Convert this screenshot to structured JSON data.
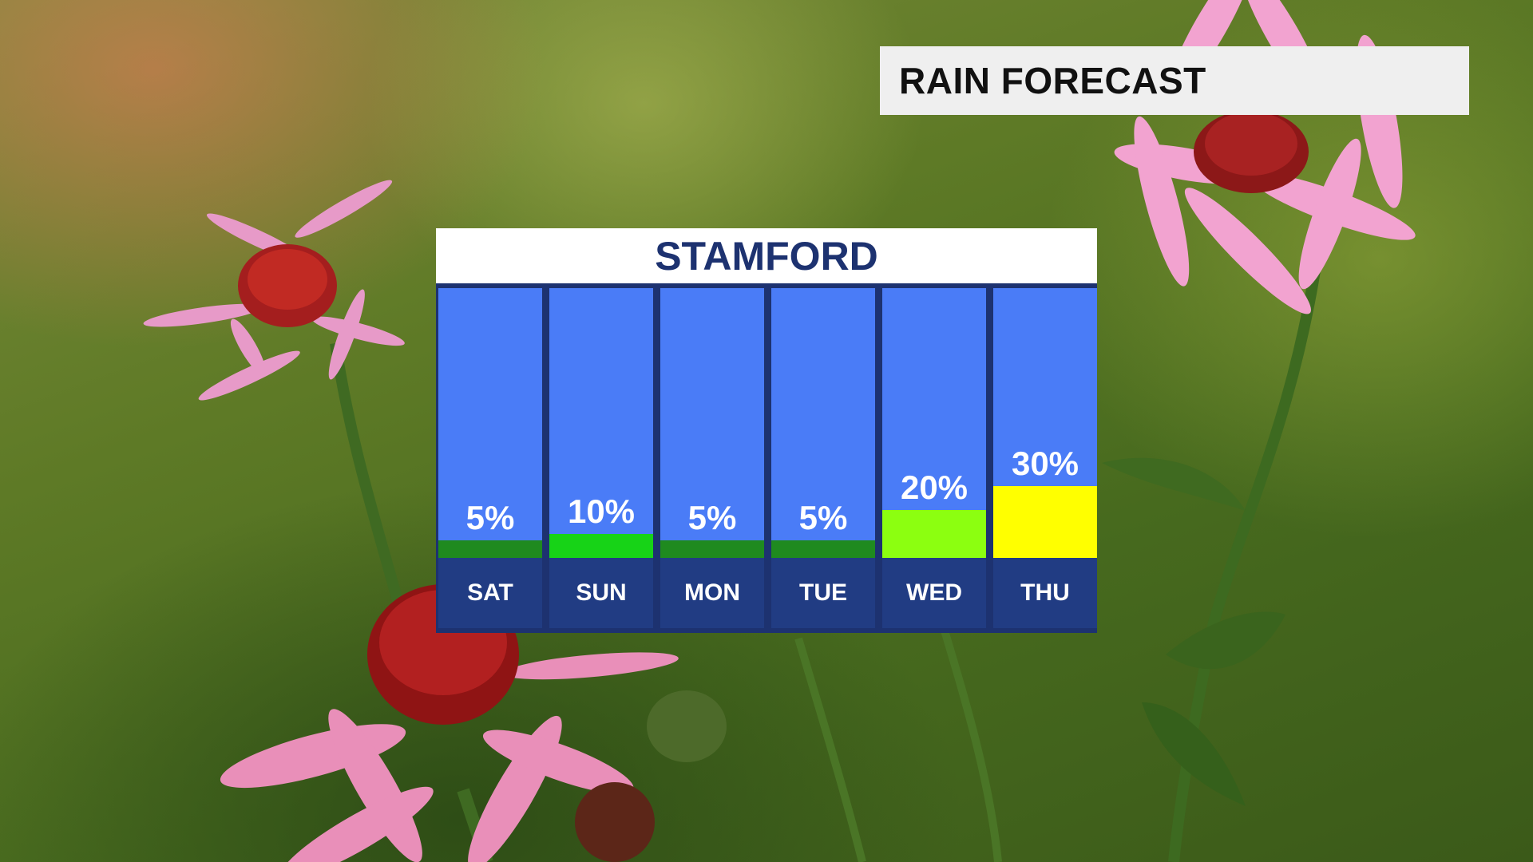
{
  "header": {
    "title": "RAIN FORECAST"
  },
  "panel": {
    "location": "STAMFORD"
  },
  "colors": {
    "column_bg": "#4a7cf7",
    "day_bg": "#213c83",
    "frame": "#1d3270",
    "bar_5": "#1f8a1f",
    "bar_10": "#17d317",
    "bar_20": "#8cff10",
    "bar_30": "#ffff00"
  },
  "chart_data": {
    "type": "bar",
    "title": "STAMFORD",
    "categories": [
      "SAT",
      "SUN",
      "MON",
      "TUE",
      "WED",
      "THU"
    ],
    "values": [
      5,
      10,
      5,
      5,
      20,
      30
    ],
    "value_labels": [
      "5%",
      "10%",
      "5%",
      "5%",
      "20%",
      "30%"
    ],
    "bar_colors": [
      "#1f8a1f",
      "#17d317",
      "#1f8a1f",
      "#1f8a1f",
      "#8cff10",
      "#ffff00"
    ],
    "ylabel": "",
    "ylim": [
      0,
      100
    ]
  }
}
